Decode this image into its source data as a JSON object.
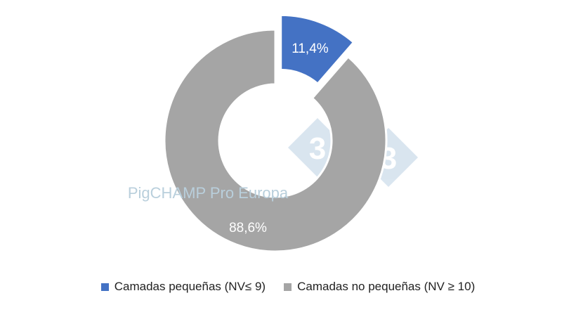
{
  "chart_data": {
    "type": "donut",
    "title": "",
    "series": [
      {
        "name": "Camadas pequeñas (NV≤ 9)",
        "value": 11.4,
        "label": "11,4%",
        "color": "#4472C4",
        "exploded": true
      },
      {
        "name": "Camadas no pequeñas (NV ≥ 10)",
        "value": 88.6,
        "label": "88,6%",
        "color": "#A5A5A5",
        "exploded": false
      }
    ],
    "legend_position": "bottom"
  },
  "watermark": {
    "text": "PigCHAMP Pro Europa",
    "logo": "333-diamond-logo"
  }
}
